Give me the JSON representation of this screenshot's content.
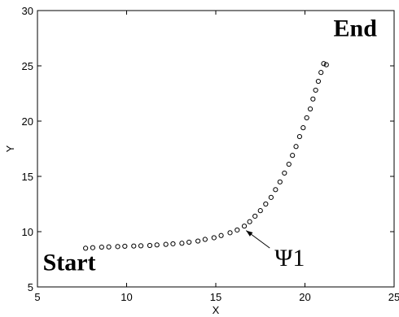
{
  "chart_data": {
    "type": "scatter",
    "xlabel": "X",
    "ylabel": "Y",
    "xlim": [
      5,
      25
    ],
    "ylim": [
      5,
      30
    ],
    "xticks": [
      5,
      10,
      15,
      20,
      25
    ],
    "yticks": [
      5,
      10,
      15,
      20,
      25,
      30
    ],
    "grid": false,
    "marker": "open-circle",
    "series": [
      {
        "x": [
          7.7,
          8.1,
          8.6,
          9.0,
          9.5,
          9.9,
          10.4,
          10.8,
          11.3,
          11.7,
          12.2,
          12.6,
          13.1,
          13.5,
          14.0,
          14.4,
          14.9,
          15.3,
          15.8,
          16.2,
          16.6,
          16.9,
          17.2,
          17.5,
          17.8,
          18.1,
          18.35,
          18.6,
          18.85,
          19.1,
          19.3,
          19.5,
          19.7,
          19.9,
          20.1,
          20.3,
          20.45,
          20.6,
          20.75,
          20.9,
          21.05,
          21.2
        ],
        "y": [
          8.5,
          8.55,
          8.6,
          8.62,
          8.65,
          8.68,
          8.7,
          8.72,
          8.75,
          8.8,
          8.85,
          8.9,
          8.95,
          9.05,
          9.15,
          9.3,
          9.45,
          9.65,
          9.9,
          10.15,
          10.5,
          10.9,
          11.4,
          11.9,
          12.5,
          13.1,
          13.8,
          14.5,
          15.3,
          16.1,
          16.9,
          17.7,
          18.6,
          19.4,
          20.3,
          21.1,
          22.0,
          22.8,
          23.6,
          24.4,
          25.2,
          25.1
        ]
      }
    ],
    "annotations": [
      {
        "text": "Start",
        "x": 5.3,
        "y": 6.5
      },
      {
        "text": "End",
        "x": 21.6,
        "y": 27.7
      },
      {
        "text": "Ψ1",
        "x": 18.3,
        "y": 6.9,
        "arrow_to": {
          "x": 16.7,
          "y": 10.1
        }
      }
    ]
  }
}
